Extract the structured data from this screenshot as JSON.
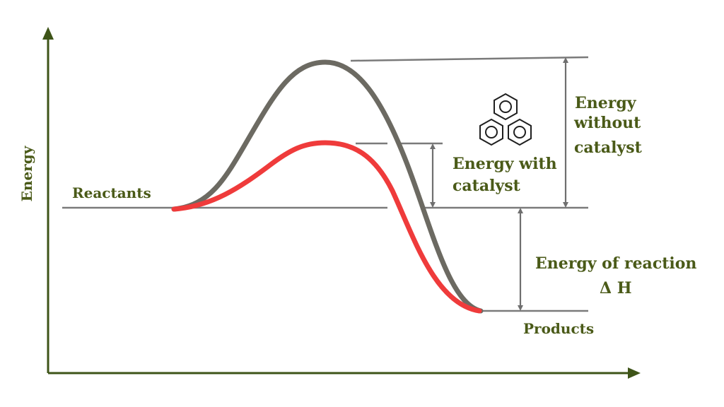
{
  "diagram": {
    "axis_label_y": "Energy",
    "reactants_label": "Reactants",
    "products_label": "Products",
    "energy_without_catalyst": [
      "Energy",
      "without",
      "catalyst"
    ],
    "energy_with_catalyst": [
      "Energy with",
      "catalyst"
    ],
    "energy_of_reaction": [
      "Energy of reaction",
      "Δ H"
    ],
    "icon": "catalyst-molecule-icon",
    "colors": {
      "axis": "#3e5418",
      "label": "#4a5a18",
      "curve_without_catalyst": "#6c6a62",
      "curve_with_catalyst": "#ef3b3b",
      "guides": "#7a7a7a"
    }
  }
}
